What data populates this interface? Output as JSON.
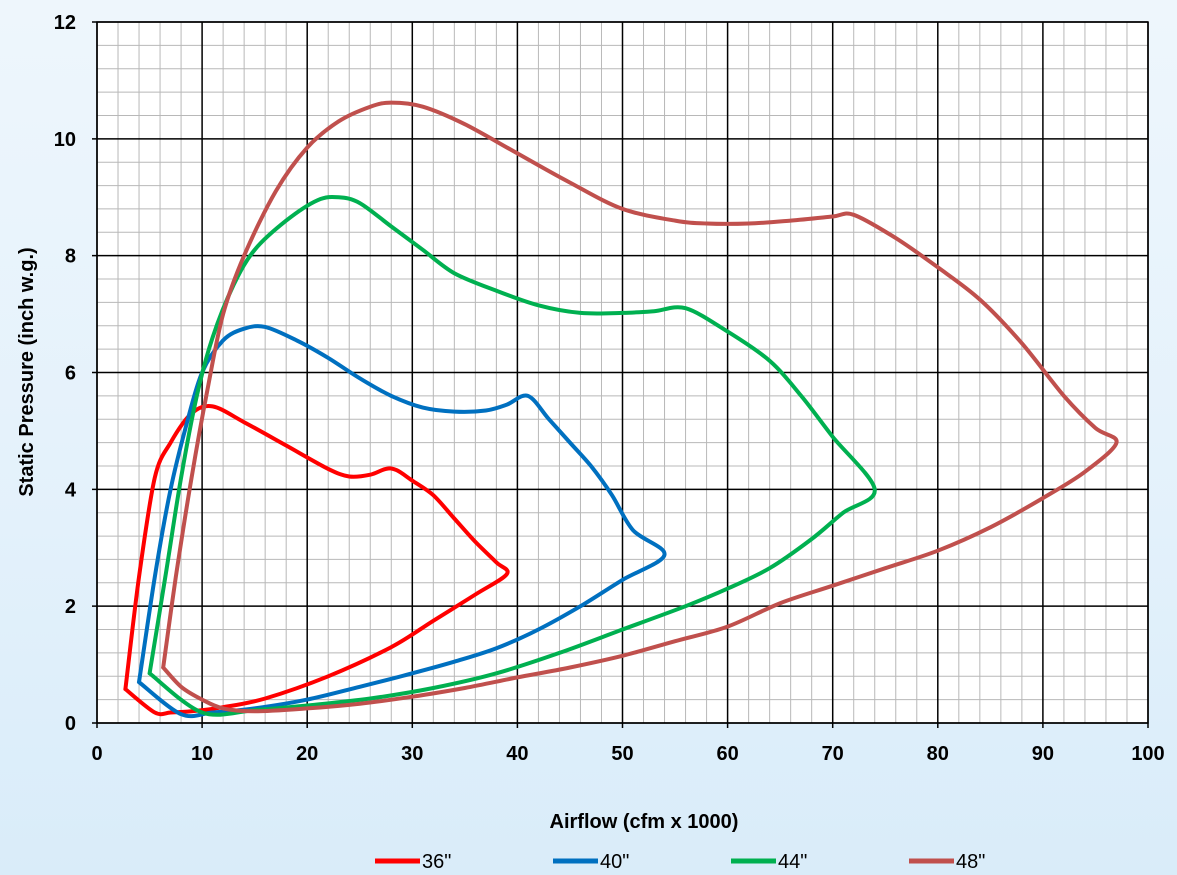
{
  "chart_data": {
    "type": "line",
    "title": "",
    "xlabel": "Airflow (cfm x 1000)",
    "ylabel": "Static Pressure (inch w.g.)",
    "xlim": [
      0,
      100
    ],
    "ylim": [
      0,
      12
    ],
    "x_ticks": [
      "0",
      "10",
      "20",
      "30",
      "40",
      "50",
      "60",
      "70",
      "80",
      "90",
      "100"
    ],
    "y_ticks": [
      "0",
      "2",
      "4",
      "6",
      "8",
      "10",
      "12"
    ],
    "grid": true,
    "legend_position": "bottom",
    "series": [
      {
        "name": "36\"",
        "color": "#ff0000",
        "points": [
          [
            2.7,
            0.58
          ],
          [
            4,
            2.5
          ],
          [
            5.5,
            4.2
          ],
          [
            7,
            4.8
          ],
          [
            9,
            5.3
          ],
          [
            11,
            5.42
          ],
          [
            14,
            5.15
          ],
          [
            18,
            4.75
          ],
          [
            22,
            4.35
          ],
          [
            24,
            4.22
          ],
          [
            26,
            4.25
          ],
          [
            27.5,
            4.35
          ],
          [
            28.5,
            4.33
          ],
          [
            30,
            4.15
          ],
          [
            32,
            3.9
          ],
          [
            34,
            3.5
          ],
          [
            36,
            3.1
          ],
          [
            38,
            2.75
          ],
          [
            39,
            2.55
          ],
          [
            36,
            2.2
          ],
          [
            32,
            1.75
          ],
          [
            28,
            1.3
          ],
          [
            22,
            0.8
          ],
          [
            16,
            0.42
          ],
          [
            12,
            0.27
          ],
          [
            9,
            0.2
          ],
          [
            7,
            0.18
          ],
          [
            5.5,
            0.18
          ],
          [
            2.7,
            0.58
          ]
        ]
      },
      {
        "name": "40\"",
        "color": "#0070c0",
        "points": [
          [
            4,
            0.7
          ],
          [
            5.5,
            2.5
          ],
          [
            7,
            4.0
          ],
          [
            8.5,
            5.1
          ],
          [
            10,
            6.0
          ],
          [
            12,
            6.55
          ],
          [
            14,
            6.75
          ],
          [
            16,
            6.78
          ],
          [
            19,
            6.55
          ],
          [
            22,
            6.25
          ],
          [
            25,
            5.9
          ],
          [
            28,
            5.6
          ],
          [
            31,
            5.4
          ],
          [
            34,
            5.33
          ],
          [
            37,
            5.35
          ],
          [
            39,
            5.45
          ],
          [
            41,
            5.6
          ],
          [
            43,
            5.2
          ],
          [
            45,
            4.8
          ],
          [
            47,
            4.4
          ],
          [
            49,
            3.9
          ],
          [
            51,
            3.3
          ],
          [
            54,
            2.88
          ],
          [
            50,
            2.45
          ],
          [
            46,
            2.0
          ],
          [
            42,
            1.6
          ],
          [
            38,
            1.28
          ],
          [
            34,
            1.05
          ],
          [
            30,
            0.85
          ],
          [
            25,
            0.62
          ],
          [
            20,
            0.4
          ],
          [
            15,
            0.25
          ],
          [
            11,
            0.18
          ],
          [
            8,
            0.15
          ],
          [
            4,
            0.7
          ]
        ]
      },
      {
        "name": "44\"",
        "color": "#00b050",
        "points": [
          [
            5,
            0.85
          ],
          [
            6.5,
            2.5
          ],
          [
            8,
            4.2
          ],
          [
            9.5,
            5.6
          ],
          [
            11,
            6.6
          ],
          [
            13,
            7.5
          ],
          [
            15,
            8.1
          ],
          [
            18,
            8.6
          ],
          [
            21,
            8.95
          ],
          [
            23,
            9.0
          ],
          [
            25,
            8.9
          ],
          [
            28,
            8.5
          ],
          [
            31,
            8.1
          ],
          [
            34,
            7.7
          ],
          [
            38,
            7.4
          ],
          [
            42,
            7.15
          ],
          [
            46,
            7.02
          ],
          [
            50,
            7.02
          ],
          [
            53,
            7.05
          ],
          [
            56,
            7.1
          ],
          [
            60,
            6.7
          ],
          [
            64,
            6.2
          ],
          [
            67,
            5.6
          ],
          [
            70,
            4.9
          ],
          [
            74,
            4.0
          ],
          [
            71,
            3.6
          ],
          [
            68,
            3.15
          ],
          [
            64,
            2.65
          ],
          [
            60,
            2.3
          ],
          [
            56,
            2.0
          ],
          [
            50,
            1.6
          ],
          [
            44,
            1.2
          ],
          [
            38,
            0.85
          ],
          [
            32,
            0.6
          ],
          [
            26,
            0.42
          ],
          [
            20,
            0.3
          ],
          [
            15,
            0.22
          ],
          [
            10,
            0.18
          ],
          [
            5,
            0.85
          ]
        ]
      },
      {
        "name": "48\"",
        "color": "#c0504d",
        "points": [
          [
            6.3,
            0.95
          ],
          [
            7.5,
            2.5
          ],
          [
            9,
            4.2
          ],
          [
            10.5,
            5.7
          ],
          [
            12,
            7.0
          ],
          [
            14,
            8.0
          ],
          [
            17,
            9.1
          ],
          [
            20,
            9.85
          ],
          [
            23,
            10.3
          ],
          [
            26,
            10.55
          ],
          [
            28,
            10.62
          ],
          [
            31,
            10.55
          ],
          [
            35,
            10.25
          ],
          [
            40,
            9.75
          ],
          [
            45,
            9.25
          ],
          [
            50,
            8.8
          ],
          [
            55,
            8.6
          ],
          [
            58,
            8.55
          ],
          [
            62,
            8.55
          ],
          [
            66,
            8.6
          ],
          [
            70,
            8.67
          ],
          [
            72,
            8.7
          ],
          [
            76,
            8.3
          ],
          [
            80,
            7.8
          ],
          [
            84,
            7.25
          ],
          [
            88,
            6.5
          ],
          [
            92,
            5.6
          ],
          [
            95,
            5.05
          ],
          [
            97,
            4.8
          ],
          [
            94,
            4.3
          ],
          [
            90,
            3.85
          ],
          [
            85,
            3.35
          ],
          [
            80,
            2.95
          ],
          [
            75,
            2.65
          ],
          [
            70,
            2.35
          ],
          [
            65,
            2.05
          ],
          [
            60,
            1.65
          ],
          [
            55,
            1.4
          ],
          [
            50,
            1.15
          ],
          [
            45,
            0.95
          ],
          [
            40,
            0.78
          ],
          [
            35,
            0.6
          ],
          [
            30,
            0.45
          ],
          [
            25,
            0.33
          ],
          [
            20,
            0.25
          ],
          [
            15,
            0.2
          ],
          [
            12,
            0.25
          ],
          [
            10,
            0.4
          ],
          [
            8,
            0.62
          ],
          [
            6.3,
            0.95
          ]
        ]
      }
    ]
  }
}
